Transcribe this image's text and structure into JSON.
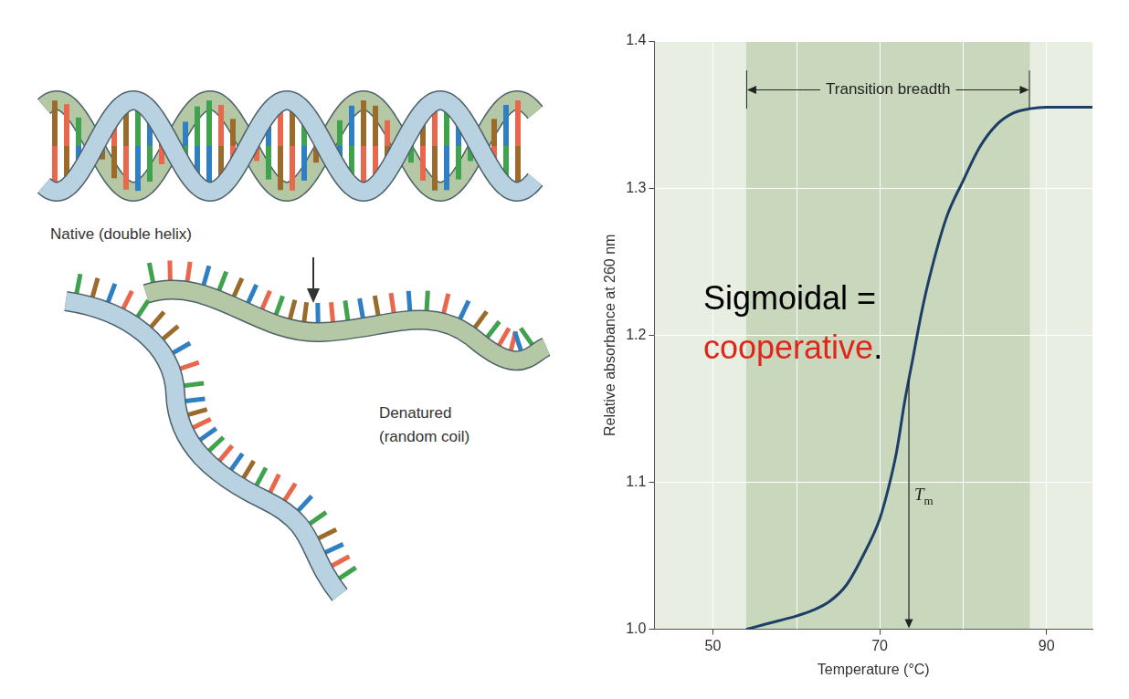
{
  "diagram": {
    "native_label": "Native (double helix)",
    "denatured_label": [
      "Denatured",
      "(random coil)"
    ]
  },
  "chart_data": {
    "type": "line",
    "x": [
      54,
      56,
      58,
      60,
      62,
      64,
      66,
      68,
      70,
      71,
      72,
      73,
      74,
      75,
      76,
      78,
      80,
      82,
      84,
      86,
      88,
      90,
      92,
      95.5
    ],
    "values": [
      1.0,
      1.003,
      1.006,
      1.009,
      1.013,
      1.019,
      1.03,
      1.05,
      1.075,
      1.095,
      1.12,
      1.155,
      1.185,
      1.215,
      1.24,
      1.28,
      1.305,
      1.328,
      1.343,
      1.351,
      1.354,
      1.355,
      1.355,
      1.355
    ],
    "color": "#1d3e66",
    "xlabel": "Temperature (°C)",
    "ylabel": "Relative absorbance at 260 nm",
    "xlim": [
      43,
      95.5
    ],
    "ylim": [
      1,
      1.4
    ],
    "xticks": [
      50,
      70,
      90
    ],
    "yticks": [
      {
        "value": 1,
        "label": "1.0"
      },
      1.1,
      1.2,
      1.3,
      1.4
    ],
    "grid": true,
    "annotations": [
      {
        "text": "Transition breadth",
        "x_range": [
          54,
          88
        ]
      },
      {
        "text": "Tm",
        "x": 73.5
      },
      {
        "text_parts": [
          {
            "text": "Sigmoidal =",
            "color": "#000000"
          },
          {
            "text": "cooperative",
            "color": "#e0251b"
          },
          {
            "text": ".",
            "color": "#000000"
          }
        ]
      }
    ]
  }
}
